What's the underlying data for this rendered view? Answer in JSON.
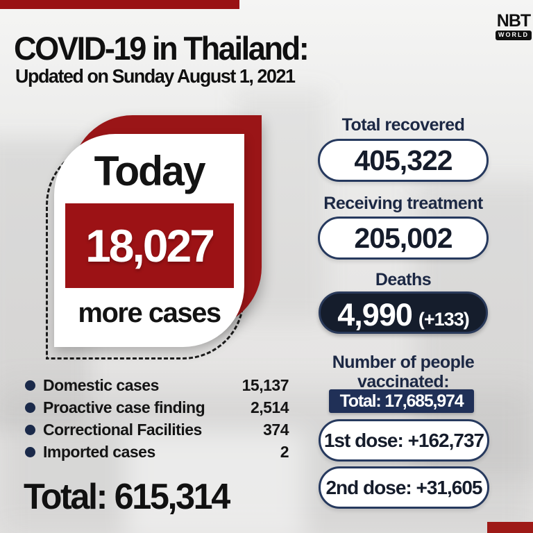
{
  "header": {
    "title": "COVID-19 in Thailand:",
    "subtitle": "Updated on Sunday August 1, 2021",
    "logo": {
      "name": "NBT",
      "sub": "WORLD"
    }
  },
  "today_card": {
    "label": "Today",
    "value": "18,027",
    "caption": "more cases"
  },
  "stats": {
    "recovered": {
      "label": "Total recovered",
      "value": "405,322"
    },
    "treatment": {
      "label": "Receiving treatment",
      "value": "205,002"
    },
    "deaths": {
      "label": "Deaths",
      "value": "4,990",
      "delta": "(+133)"
    }
  },
  "vaccination": {
    "heading": "Number of people vaccinated:",
    "total": "Total: 17,685,974",
    "dose1": "1st dose: +162,737",
    "dose2": "2nd dose: +31,605"
  },
  "breakdown": {
    "rows": [
      {
        "label": "Domestic cases",
        "value": "15,137"
      },
      {
        "label": "Proactive case finding",
        "value": "2,514"
      },
      {
        "label": "Correctional Facilities",
        "value": "374"
      },
      {
        "label": "Imported cases",
        "value": "2"
      }
    ],
    "total": "Total: 615,314"
  },
  "colors": {
    "dark_red": "#9a1517",
    "bright_red_bar": "#9e1a17",
    "navy_text": "#1c2844",
    "pill_border": "#26395e",
    "deaths_pill_bg": "#151d2c",
    "vacc_total_bg": "#203057",
    "background": "#e8e7e6"
  }
}
